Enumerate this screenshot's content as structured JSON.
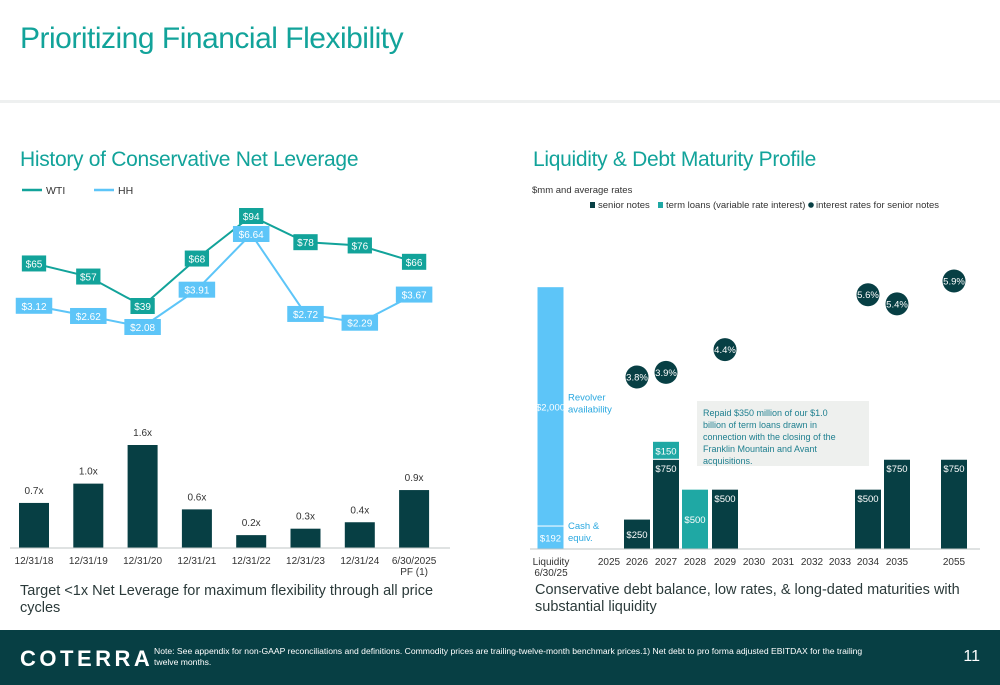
{
  "page": {
    "title": "Prioritizing Financial Flexibility",
    "left_heading": "History of Conservative Net Leverage",
    "right_heading": "Liquidity & Debt Maturity Profile",
    "left_caption": "Target <1x Net Leverage for maximum flexibility through all price cycles",
    "right_caption": "Conservative debt balance, low rates, & long-dated maturities with substantial liquidity",
    "footer_logo": "COTERRA",
    "footer_note": "Note: See appendix for non-GAAP reconciliations and definitions. Commodity prices are trailing-twelve-month benchmark prices.1) Net debt to pro forma adjusted EBITDAX for the trailing twelve months.",
    "page_number": "11"
  },
  "colors": {
    "teal": "#12a39a",
    "dark": "#073f44",
    "light_blue": "#5dc5f8",
    "term_teal": "#1fa8a4",
    "gray_box": "#eef0ee"
  },
  "chart_data": [
    {
      "type": "line",
      "legend_position": "top-left",
      "categories": [
        "12/31/18",
        "12/31/19",
        "12/31/20",
        "12/31/21",
        "12/31/22",
        "12/31/23",
        "12/31/24",
        "6/30/2025 PF (1)"
      ],
      "series": [
        {
          "name": "WTI",
          "values": [
            65,
            57,
            39,
            68,
            94,
            78,
            76,
            66
          ],
          "labels": [
            "$65",
            "$57",
            "$39",
            "$68",
            "$94",
            "$78",
            "$76",
            "$66"
          ],
          "color": "#12a39a"
        },
        {
          "name": "HH",
          "values": [
            3.12,
            2.62,
            2.08,
            3.91,
            6.64,
            2.72,
            2.29,
            3.67
          ],
          "labels": [
            "$3.12",
            "$2.62",
            "$2.08",
            "$3.91",
            "$6.64",
            "$2.72",
            "$2.29",
            "$3.67"
          ],
          "color": "#5dc5f8"
        }
      ]
    },
    {
      "type": "bar",
      "categories": [
        "12/31/18",
        "12/31/19",
        "12/31/20",
        "12/31/21",
        "12/31/22",
        "12/31/23",
        "12/31/24",
        "6/30/2025 PF (1)"
      ],
      "values": [
        0.7,
        1.0,
        1.6,
        0.6,
        0.2,
        0.3,
        0.4,
        0.9
      ],
      "labels": [
        "0.7x",
        "1.0x",
        "1.6x",
        "0.6x",
        "0.2x",
        "0.3x",
        "0.4x",
        "0.9x"
      ],
      "color": "#073f44"
    },
    {
      "type": "bar",
      "unit_note": "$mm and average rates",
      "legend": [
        {
          "name": "senior notes",
          "color": "#073f44",
          "marker": "square"
        },
        {
          "name": "term loans (variable rate interest)",
          "color": "#1fa8a4",
          "marker": "square"
        },
        {
          "name": "interest rates for senior notes",
          "color": "#073f44",
          "marker": "dot"
        }
      ],
      "categories": [
        "Liquidity 6/30/25",
        "2025",
        "2026",
        "2027",
        "2028",
        "2029",
        "2030",
        "2031",
        "2032",
        "2033",
        "2034",
        "2035",
        "2055"
      ],
      "liquidity": [
        {
          "name": "Cash & equiv.",
          "value": 192,
          "label": "$192"
        },
        {
          "name": "Revolver availability",
          "value": 2000,
          "label": "$2,000"
        }
      ],
      "senior_notes": [
        {
          "year": "2026",
          "value": 250,
          "label": "$250",
          "rate": "3.8%"
        },
        {
          "year": "2027",
          "value": 750,
          "label": "$750",
          "rate": "3.9%"
        },
        {
          "year": "2029",
          "value": 500,
          "label": "$500",
          "rate": "4.4%"
        },
        {
          "year": "2034",
          "value": 500,
          "label": "$500",
          "rate": "5.6%"
        },
        {
          "year": "2035",
          "value": 750,
          "label": "$750",
          "rate": "5.4%"
        },
        {
          "year": "2055",
          "value": 750,
          "label": "$750",
          "rate": "5.9%"
        }
      ],
      "term_loans": [
        {
          "year": "2027",
          "value": 150,
          "label": "$150"
        },
        {
          "year": "2028",
          "value": 500,
          "label": "$500"
        }
      ],
      "annotation": "Repaid $350 million of our $1.0 billion of term loans drawn in connection with the closing of the Franklin Mountain and Avant acquisitions."
    }
  ]
}
